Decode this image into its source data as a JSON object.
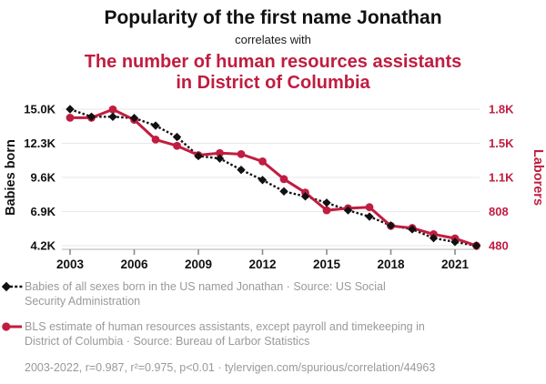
{
  "header": {
    "title": "Popularity of the first name Jonathan",
    "subtitle": "correlates with",
    "title2_line1": "The number of human resources assistants",
    "title2_line2": "in District of Columbia"
  },
  "chart_data": {
    "type": "line",
    "x": [
      2003,
      2004,
      2005,
      2006,
      2007,
      2008,
      2009,
      2010,
      2011,
      2012,
      2013,
      2014,
      2015,
      2016,
      2017,
      2018,
      2019,
      2020,
      2021,
      2022
    ],
    "x_tick_years": [
      2003,
      2006,
      2009,
      2012,
      2015,
      2018,
      2021
    ],
    "series": [
      {
        "name": "Babies of all sexes born in the US named Jonathan",
        "axis": "left",
        "marker": "diamond",
        "line": "dashed",
        "values": [
          15000,
          14400,
          14400,
          14300,
          13700,
          12800,
          11300,
          11100,
          10200,
          9400,
          8500,
          8100,
          7600,
          7000,
          6500,
          5800,
          5500,
          4800,
          4500,
          4200
        ]
      },
      {
        "name": "BLS estimate of human resources assistants, except payroll and timekeeping in District of Columbia",
        "axis": "right",
        "marker": "circle",
        "line": "solid",
        "values": [
          1710,
          1710,
          1790,
          1690,
          1500,
          1440,
          1350,
          1370,
          1360,
          1290,
          1120,
          990,
          820,
          840,
          850,
          670,
          650,
          590,
          550,
          480
        ]
      }
    ],
    "left_axis": {
      "label": "Babies born",
      "min": 4200,
      "max": 15000,
      "ticks": [
        {
          "label": "15.0K",
          "value": 15000
        },
        {
          "label": "12.3K",
          "value": 12300
        },
        {
          "label": "9.6K",
          "value": 9600
        },
        {
          "label": "6.9K",
          "value": 6900
        },
        {
          "label": "4.2K",
          "value": 4200
        }
      ]
    },
    "right_axis": {
      "label": "Laborers",
      "min": 480,
      "max": 1792,
      "ticks": [
        {
          "label": "1.8K",
          "value": 1792
        },
        {
          "label": "1.5K",
          "value": 1464
        },
        {
          "label": "1.1K",
          "value": 1136
        },
        {
          "label": "808",
          "value": 808
        },
        {
          "label": "480",
          "value": 480
        }
      ]
    },
    "grid": true,
    "legend_position": "bottom"
  },
  "legend": {
    "items": [
      {
        "marker": "black-diamond-dashed-line",
        "lines": [
          "Babies of all sexes born in the US named Jonathan · Source: US Social",
          "Security Administration"
        ]
      },
      {
        "marker": "red-circle-solid-line",
        "lines": [
          "BLS estimate of human resources assistants, except payroll and timekeeping in",
          "District of Columbia · Source: Bureau of Larbor Statistics"
        ]
      }
    ]
  },
  "footer": {
    "text": "2003-2022, r=0.987, r²=0.975, p<0.01 · tylervigen.com/spurious/correlation/44963"
  },
  "colors": {
    "accent_red": "#c01d40",
    "series_black": "#111111",
    "grid": "#e7e7e7",
    "axis_line": "#cccccc",
    "tick_mark": "#8a8a8a",
    "legend_text": "#999999"
  }
}
